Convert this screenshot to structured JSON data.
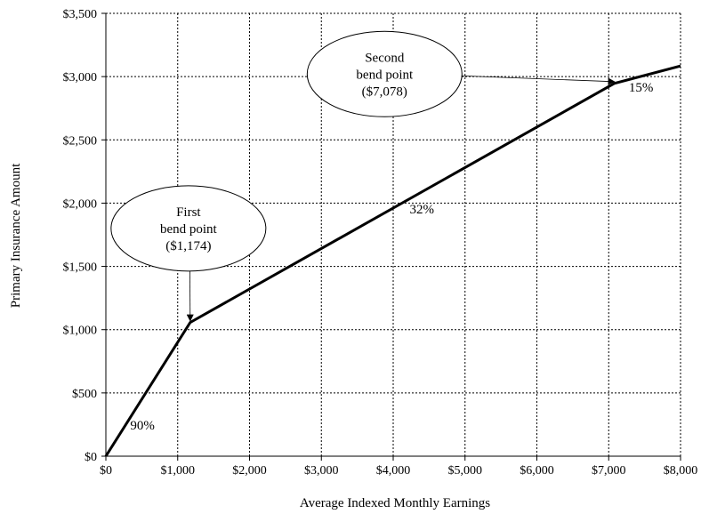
{
  "chart_data": {
    "type": "line",
    "title": "",
    "xlabel": "Average Indexed Monthly Earnings",
    "ylabel": "Primary Insurance Amount",
    "xlim": [
      0,
      8000
    ],
    "ylim": [
      0,
      3500
    ],
    "x_ticks": [
      0,
      1000,
      2000,
      3000,
      4000,
      5000,
      6000,
      7000,
      8000
    ],
    "x_tick_labels": [
      "$0",
      "$1,000",
      "$2,000",
      "$3,000",
      "$4,000",
      "$5,000",
      "$6,000",
      "$7,000",
      "$8,000"
    ],
    "y_ticks": [
      0,
      500,
      1000,
      1500,
      2000,
      2500,
      3000,
      3500
    ],
    "y_tick_labels": [
      "$0",
      "$500",
      "$1,000",
      "$1,500",
      "$2,000",
      "$2,500",
      "$3,000",
      "$3,500"
    ],
    "grid": true,
    "series": [
      {
        "x": [
          0,
          1174,
          7078,
          8000
        ],
        "y": [
          0,
          1057,
          2946,
          3084
        ]
      }
    ],
    "segment_labels": [
      {
        "text": "90%",
        "x": 510,
        "y": 210
      },
      {
        "text": "32%",
        "x": 4400,
        "y": 1920
      },
      {
        "text": "15%",
        "x": 7450,
        "y": 2880
      }
    ],
    "annotations": [
      {
        "lines": [
          "First",
          "bend point",
          "($1,174)"
        ],
        "bubble_x": 1150,
        "bubble_y": 1800,
        "target_x": 1174,
        "target_y": 1057
      },
      {
        "lines": [
          "Second",
          "bend point",
          "($7,078)"
        ],
        "bubble_x": 3880,
        "bubble_y": 3020,
        "target_x": 7078,
        "target_y": 2946
      }
    ]
  }
}
